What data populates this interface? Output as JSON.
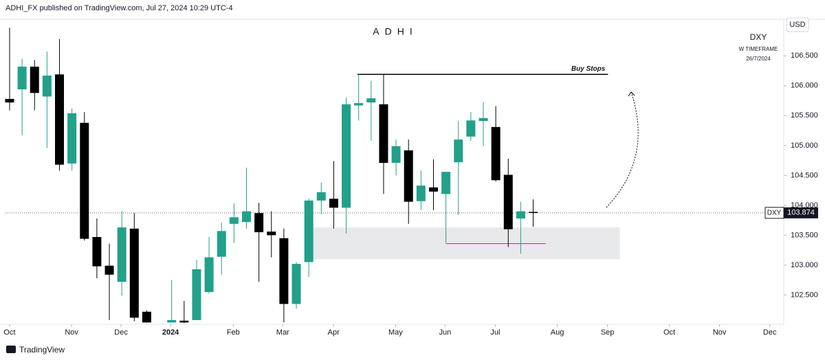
{
  "header": "ADHI_FX published on TradingView.com, Jul 27, 2024 10:29 UTC-4",
  "footer": "TradingView",
  "chart_data": {
    "type": "candlestick",
    "title": "ADHI",
    "symbol": "DXY",
    "timeframe": "W TIMEFRAME",
    "date_note": "26/7/2024",
    "currency": "USD",
    "up_color": "#22a08b",
    "down_color": "#000000",
    "x": [
      0,
      1,
      2,
      3,
      4,
      5,
      6,
      7,
      8,
      9,
      10,
      11,
      13,
      14,
      15,
      16,
      17,
      18,
      19,
      20,
      21,
      22,
      23,
      24,
      25,
      26,
      27,
      28,
      29,
      30,
      31,
      32,
      33,
      34,
      35,
      36,
      37,
      38,
      39,
      40,
      41,
      42
    ],
    "open": [
      105.78,
      105.94,
      106.32,
      105.82,
      106.19,
      104.7,
      105.38,
      103.47,
      102.99,
      102.72,
      103.61,
      102.22,
      102.04,
      102.07,
      102.08,
      102.55,
      103.14,
      103.69,
      103.72,
      103.87,
      103.56,
      103.45,
      102.35,
      103.05,
      104.08,
      104.11,
      103.96,
      105.67,
      105.72,
      105.69,
      104.71,
      104.92,
      104.07,
      104.3,
      104.19,
      104.72,
      105.15,
      105.41,
      105.31,
      104.51,
      103.78,
      103.89
    ],
    "high": [
      106.97,
      106.45,
      106.43,
      106.57,
      106.78,
      105.62,
      105.56,
      103.78,
      103.36,
      103.9,
      103.87,
      102.24,
      102.75,
      102.4,
      103.09,
      103.47,
      103.71,
      104.03,
      104.63,
      104.04,
      103.9,
      103.61,
      103.05,
      104.11,
      104.38,
      104.74,
      105.8,
      106.19,
      106.08,
      106.19,
      105.1,
      105.1,
      104.58,
      104.77,
      104.56,
      105.41,
      105.56,
      105.73,
      105.66,
      104.78,
      104.06,
      104.1
    ],
    "low": [
      105.59,
      105.17,
      105.59,
      104.96,
      104.58,
      104.58,
      103.41,
      102.78,
      102.08,
      102.49,
      102.06,
      102.04,
      102.04,
      102.03,
      102.08,
      102.52,
      102.84,
      103.37,
      103.61,
      102.72,
      103.13,
      102.04,
      102.27,
      102.8,
      103.85,
      103.61,
      103.53,
      105.42,
      105.08,
      104.19,
      104.5,
      103.69,
      103.92,
      103.92,
      103.37,
      103.84,
      105.08,
      104.99,
      104.4,
      103.3,
      103.19,
      103.64
    ],
    "close": [
      105.72,
      106.32,
      105.88,
      106.17,
      104.68,
      105.54,
      103.44,
      102.98,
      102.84,
      103.63,
      102.12,
      102.04,
      102.08,
      102.04,
      102.93,
      103.13,
      103.57,
      103.8,
      103.9,
      103.55,
      103.5,
      102.35,
      103.02,
      104.08,
      104.22,
      103.96,
      105.69,
      105.71,
      105.79,
      104.71,
      104.99,
      104.06,
      104.33,
      104.23,
      104.56,
      105.1,
      105.42,
      105.46,
      104.42,
      103.6,
      103.9,
      103.874
    ],
    "ylim": [
      102.01,
      107.09
    ],
    "yticks": [
      {
        "value": 102.5,
        "label": "102.500"
      },
      {
        "value": 103,
        "label": "103.000"
      },
      {
        "value": 103.5,
        "label": "103.500"
      },
      {
        "value": 104,
        "label": "104.000"
      },
      {
        "value": 104.5,
        "label": "104.500"
      },
      {
        "value": 105,
        "label": "105.000"
      },
      {
        "value": 105.5,
        "label": "105.500"
      },
      {
        "value": 106,
        "label": "106.000"
      },
      {
        "value": 106.5,
        "label": "106.500"
      }
    ],
    "xlim": [
      -0.33,
      62.1
    ],
    "xticks": [
      {
        "value": 0,
        "label": "Oct"
      },
      {
        "value": 4.97,
        "label": "Nov"
      },
      {
        "value": 8.94,
        "label": "Dec"
      },
      {
        "value": 12.91,
        "label": "2024"
      },
      {
        "value": 17.94,
        "label": "Feb"
      },
      {
        "value": 21.91,
        "label": "Mar"
      },
      {
        "value": 25.99,
        "label": "Apr"
      },
      {
        "value": 30.96,
        "label": "May"
      },
      {
        "value": 34.93,
        "label": "Jun"
      },
      {
        "value": 38.96,
        "label": "Jul"
      },
      {
        "value": 43.93,
        "label": "Aug"
      },
      {
        "value": 47.96,
        "label": "Sep"
      },
      {
        "value": 52.92,
        "label": "Oct"
      },
      {
        "value": 56.95,
        "label": "Nov"
      },
      {
        "value": 60.98,
        "label": "Dec"
      }
    ],
    "buy_stops": {
      "label": "Buy Stops",
      "price": 106.19,
      "x": [
        27.9,
        48.0
      ],
      "color": "#000000"
    },
    "low_line": {
      "price": 103.36,
      "x": [
        35.0,
        43.0
      ],
      "color": "#e53935"
    },
    "zone": {
      "prices": [
        103.1,
        103.63
      ],
      "x": [
        24.3,
        48.95
      ],
      "color": "#e8e9eb"
    }
  }
}
